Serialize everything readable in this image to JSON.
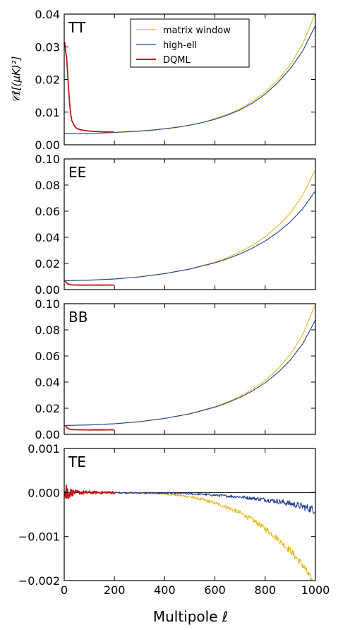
{
  "figure": {
    "xlabel": "Multipole ℓ",
    "legend": {
      "placement": "top-center",
      "entries": [
        {
          "name": "matrix window",
          "color": "#E8B619"
        },
        {
          "name": "high-ell",
          "color": "#1F3F96"
        },
        {
          "name": "DQML",
          "color": "#C0161C"
        }
      ]
    }
  },
  "chart_data": [
    {
      "type": "line",
      "panel_label": "TT",
      "ylabel": "𝒞ℓ[(μK)²]",
      "xlim": [
        0,
        1000
      ],
      "ylim": [
        0.0,
        0.04
      ],
      "yticks": [
        0.0,
        0.01,
        0.02,
        0.03,
        0.04
      ],
      "ytick_labels": [
        "0.00",
        "0.01",
        "0.02",
        "0.03",
        "0.04"
      ],
      "xticks": [
        0,
        200,
        400,
        600,
        800,
        1000
      ],
      "xtick_labels": [],
      "zero_line": false,
      "series": [
        {
          "name": "matrix window",
          "color": "#E8B619",
          "x": [
            150,
            250,
            350,
            450,
            550,
            650,
            700,
            750,
            800,
            850,
            900,
            950,
            980,
            1000
          ],
          "y": [
            0.0037,
            0.0039,
            0.0044,
            0.0053,
            0.0068,
            0.0093,
            0.011,
            0.0133,
            0.0162,
            0.0198,
            0.0245,
            0.031,
            0.0365,
            0.0405
          ]
        },
        {
          "name": "high-ell",
          "color": "#1F3F96",
          "x": [
            0,
            50,
            100,
            150,
            200,
            250,
            300,
            350,
            400,
            450,
            500,
            550,
            600,
            650,
            700,
            750,
            800,
            850,
            900,
            950,
            1000
          ],
          "y": [
            0.0034,
            0.0034,
            0.0035,
            0.0036,
            0.0038,
            0.004,
            0.0042,
            0.0045,
            0.0049,
            0.0054,
            0.006,
            0.0068,
            0.0078,
            0.0091,
            0.0107,
            0.0128,
            0.0155,
            0.019,
            0.0233,
            0.0288,
            0.0365
          ]
        },
        {
          "name": "DQML",
          "color": "#C0161C",
          "x": [
            2,
            5,
            10,
            15,
            20,
            25,
            30,
            40,
            50,
            60,
            80,
            100,
            120,
            150,
            180,
            200
          ],
          "y": [
            0.0315,
            0.029,
            0.0265,
            0.02,
            0.014,
            0.0098,
            0.0075,
            0.0058,
            0.005,
            0.0047,
            0.0044,
            0.0042,
            0.0041,
            0.004,
            0.0039,
            0.0039
          ]
        }
      ]
    },
    {
      "type": "line",
      "panel_label": "EE",
      "ylabel": "",
      "xlim": [
        0,
        1000
      ],
      "ylim": [
        0.0,
        0.1
      ],
      "yticks": [
        0.0,
        0.02,
        0.04,
        0.06,
        0.08,
        0.1
      ],
      "ytick_labels": [
        "0.00",
        "0.02",
        "0.04",
        "0.06",
        "0.08",
        "0.10"
      ],
      "xticks": [
        0,
        200,
        400,
        600,
        800,
        1000
      ],
      "xtick_labels": [],
      "zero_line": false,
      "series": [
        {
          "name": "matrix window",
          "color": "#E8B619",
          "x": [
            0,
            100,
            200,
            300,
            400,
            500,
            600,
            650,
            700,
            750,
            800,
            850,
            900,
            950,
            1000
          ],
          "y": [
            0.0068,
            0.0072,
            0.0081,
            0.0097,
            0.0122,
            0.0158,
            0.021,
            0.0245,
            0.0288,
            0.034,
            0.0405,
            0.0485,
            0.0585,
            0.0725,
            0.092
          ]
        },
        {
          "name": "high-ell",
          "color": "#1F3F96",
          "x": [
            0,
            100,
            200,
            300,
            400,
            500,
            600,
            650,
            700,
            750,
            800,
            850,
            900,
            950,
            1000
          ],
          "y": [
            0.0068,
            0.0072,
            0.0081,
            0.0097,
            0.0122,
            0.0157,
            0.0205,
            0.0236,
            0.0273,
            0.0318,
            0.0372,
            0.0438,
            0.0518,
            0.062,
            0.0755
          ]
        },
        {
          "name": "DQML",
          "color": "#C0161C",
          "x": [
            2,
            8,
            15,
            25,
            40,
            60,
            100,
            150,
            200
          ],
          "y": [
            0.007,
            0.0055,
            0.0042,
            0.0037,
            0.0035,
            0.0034,
            0.0034,
            0.0034,
            0.0035
          ]
        }
      ]
    },
    {
      "type": "line",
      "panel_label": "BB",
      "ylabel": "",
      "xlim": [
        0,
        1000
      ],
      "ylim": [
        0.0,
        0.1
      ],
      "yticks": [
        0.0,
        0.02,
        0.04,
        0.06,
        0.08,
        0.1
      ],
      "ytick_labels": [
        "0.00",
        "0.02",
        "0.04",
        "0.06",
        "0.08",
        "0.10"
      ],
      "xticks": [
        0,
        200,
        400,
        600,
        800,
        1000
      ],
      "xtick_labels": [],
      "zero_line": false,
      "series": [
        {
          "name": "matrix window",
          "color": "#E8B619",
          "x": [
            0,
            100,
            200,
            300,
            400,
            500,
            600,
            650,
            700,
            750,
            800,
            850,
            900,
            950,
            1000
          ],
          "y": [
            0.0068,
            0.0072,
            0.0081,
            0.0097,
            0.0122,
            0.0158,
            0.0212,
            0.0248,
            0.0292,
            0.0346,
            0.0414,
            0.05,
            0.061,
            0.0765,
            0.0995
          ]
        },
        {
          "name": "high-ell",
          "color": "#1F3F96",
          "x": [
            0,
            100,
            200,
            300,
            400,
            500,
            600,
            650,
            700,
            750,
            800,
            850,
            900,
            950,
            1000
          ],
          "y": [
            0.0068,
            0.0072,
            0.0081,
            0.0097,
            0.0122,
            0.0157,
            0.0208,
            0.0242,
            0.0283,
            0.0333,
            0.0395,
            0.0472,
            0.0568,
            0.0695,
            0.0875
          ]
        },
        {
          "name": "DQML",
          "color": "#C0161C",
          "x": [
            2,
            8,
            15,
            25,
            40,
            60,
            100,
            150,
            200
          ],
          "y": [
            0.007,
            0.0056,
            0.0044,
            0.0038,
            0.0036,
            0.0035,
            0.0034,
            0.0034,
            0.0035
          ]
        }
      ]
    },
    {
      "type": "line",
      "panel_label": "TE",
      "ylabel": "",
      "xlim": [
        0,
        1000
      ],
      "ylim": [
        -0.002,
        0.001
      ],
      "yticks": [
        -0.002,
        -0.001,
        0.0,
        0.001
      ],
      "ytick_labels": [
        "−0.002",
        "−0.001",
        "0.000",
        "0.001"
      ],
      "xticks": [
        0,
        200,
        400,
        600,
        800,
        1000
      ],
      "xtick_labels": [
        "0",
        "200",
        "400",
        "600",
        "800",
        "1000"
      ],
      "zero_line": true,
      "series": [
        {
          "name": "matrix window",
          "color": "#E8B619",
          "x": [
            100,
            200,
            300,
            400,
            450,
            500,
            550,
            600,
            650,
            700,
            750,
            800,
            850,
            900,
            950,
            980,
            1000
          ],
          "y": [
            0.0,
            0.0,
            -1e-05,
            -3e-05,
            -6e-05,
            -0.0001,
            -0.00016,
            -0.00024,
            -0.00034,
            -0.00046,
            -0.00062,
            -0.00082,
            -0.00105,
            -0.00132,
            -0.00165,
            -0.00195,
            -0.00212
          ],
          "noise": [
            1e-05,
            1e-05,
            1.5e-05,
            2e-05,
            2.5e-05,
            3e-05,
            3.5e-05,
            4e-05,
            4.5e-05,
            5e-05,
            5.5e-05,
            6e-05,
            7e-05,
            8e-05,
            9e-05,
            0.0001,
            0.0001
          ]
        },
        {
          "name": "high-ell",
          "color": "#1F3F96",
          "x": [
            150,
            300,
            450,
            550,
            650,
            700,
            750,
            800,
            850,
            900,
            950,
            1000
          ],
          "y": [
            0.0,
            -1e-05,
            -2e-05,
            -4e-05,
            -8e-05,
            -0.0001,
            -0.00013,
            -0.00016,
            -0.0002,
            -0.00025,
            -0.00032,
            -0.0004
          ],
          "noise": [
            1.5e-05,
            2e-05,
            2e-05,
            2.5e-05,
            3e-05,
            3.5e-05,
            4e-05,
            5e-05,
            6e-05,
            7e-05,
            8e-05,
            0.0001
          ]
        },
        {
          "name": "DQML",
          "color": "#C0161C",
          "x": [
            2,
            10,
            20,
            40,
            80,
            120,
            160,
            200
          ],
          "y": [
            0.0,
            0.0,
            0.0,
            0.0,
            0.0,
            0.0,
            0.0,
            0.0
          ],
          "noise": [
            0.00045,
            0.0003,
            0.00012,
            5e-05,
            4e-05,
            3e-05,
            3e-05,
            3e-05
          ]
        }
      ]
    }
  ]
}
